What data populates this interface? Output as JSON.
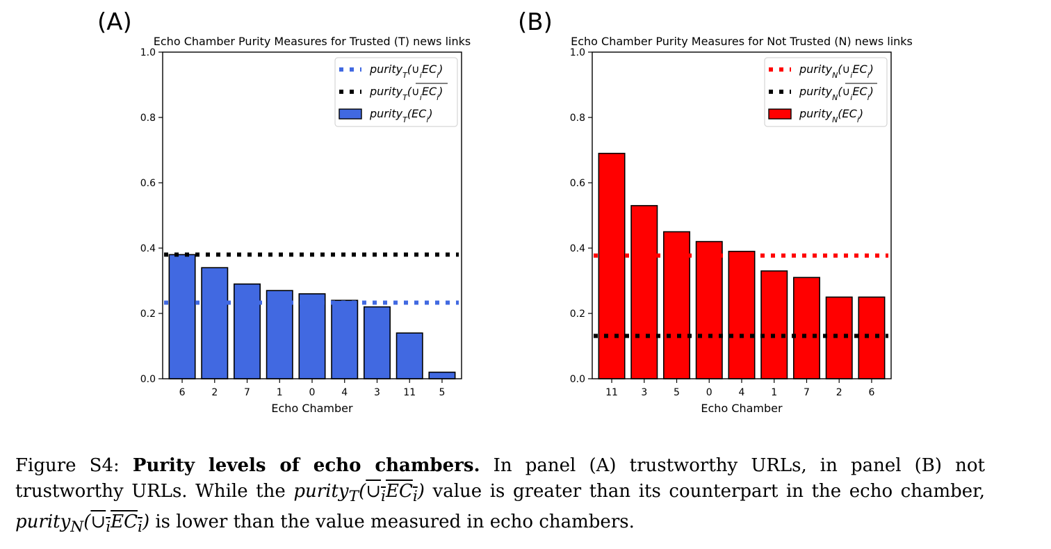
{
  "chart_data": [
    {
      "type": "bar",
      "panel_label": "(A)",
      "title": "Echo Chamber Purity Measures for Trusted (T) news links",
      "xlabel": "Echo Chamber",
      "ylabel": "",
      "ylim": [
        0,
        1.0
      ],
      "yticks": [
        "0.0",
        "0.2",
        "0.4",
        "0.6",
        "0.8",
        "1.0"
      ],
      "categories": [
        "6",
        "2",
        "7",
        "1",
        "0",
        "4",
        "3",
        "11",
        "5"
      ],
      "values": [
        0.38,
        0.34,
        0.29,
        0.27,
        0.26,
        0.24,
        0.22,
        0.14,
        0.02
      ],
      "reference_lines": [
        {
          "label": "purityT(∪iECi)",
          "value": 0.233,
          "color": "#4169e1"
        },
        {
          "label": "purityT(∪iECi overline)",
          "value": 0.38,
          "color": "#000000"
        }
      ],
      "bar_label": "purityT(ECi)",
      "bar_color": "#4169e1",
      "legend": "top-right",
      "grid": false
    },
    {
      "type": "bar",
      "panel_label": "(B)",
      "title": "Echo Chamber Purity Measures for Not Trusted (N) news links",
      "xlabel": "Echo Chamber",
      "ylabel": "",
      "ylim": [
        0,
        1.0
      ],
      "yticks": [
        "0.0",
        "0.2",
        "0.4",
        "0.6",
        "0.8",
        "1.0"
      ],
      "categories": [
        "11",
        "3",
        "5",
        "0",
        "4",
        "1",
        "7",
        "2",
        "6"
      ],
      "values": [
        0.69,
        0.53,
        0.45,
        0.42,
        0.39,
        0.33,
        0.31,
        0.25,
        0.25
      ],
      "reference_lines": [
        {
          "label": "purityN(∪iECi)",
          "value": 0.377,
          "color": "#ff0000"
        },
        {
          "label": "purityN(∪iECi overline)",
          "value": 0.131,
          "color": "#000000"
        }
      ],
      "bar_label": "purityN(ECi)",
      "bar_color": "#ff0000",
      "legend": "top-right",
      "grid": false
    }
  ],
  "caption": {
    "figure_label": "Figure S4:",
    "bold_title": "Purity levels of echo chambers.",
    "text_1": "In panel (A) trustworthy URLs, in panel (B) not trustworthy URLs. While the",
    "text_2": "value is greater than its counterpart in the echo chamber,",
    "text_3": "is lower than the value measured in echo chambers."
  }
}
